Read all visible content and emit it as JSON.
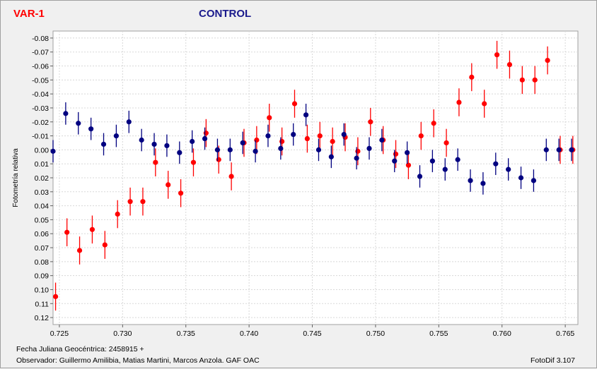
{
  "chart_data": {
    "type": "scatter",
    "xlabel": "Fecha Juliana Geocéntrica: 2458915 +",
    "ylabel": "Fotometría relativa",
    "xlim": [
      0.7245,
      0.766
    ],
    "ylim": [
      -0.085,
      0.125
    ],
    "y_inverted": true,
    "grid": true,
    "x_ticks": [
      "0.725",
      "0.730",
      "0.735",
      "0.740",
      "0.745",
      "0.750",
      "0.755",
      "0.760",
      "0.765"
    ],
    "x_tick_values": [
      0.725,
      0.73,
      0.735,
      0.74,
      0.745,
      0.75,
      0.755,
      0.76,
      0.765
    ],
    "y_ticks": [
      "-0.08",
      "-0.07",
      "-0.06",
      "-0.05",
      "-0.04",
      "-0.03",
      "-0.02",
      "-0.01",
      "0.00",
      "0.01",
      "0.02",
      "0.03",
      "0.04",
      "0.05",
      "0.06",
      "0.07",
      "0.08",
      "0.09",
      "0.10",
      "0.11",
      "0.12"
    ],
    "y_tick_values": [
      -0.08,
      -0.07,
      -0.06,
      -0.05,
      -0.04,
      -0.03,
      -0.02,
      -0.01,
      0,
      0.01,
      0.02,
      0.03,
      0.04,
      0.05,
      0.06,
      0.07,
      0.08,
      0.09,
      0.1,
      0.11,
      0.12
    ],
    "series": [
      {
        "name": "VAR-1",
        "color": "#ff0000",
        "error": 0.01,
        "x": [
          0.7247,
          0.7256,
          0.7266,
          0.7276,
          0.7286,
          0.7296,
          0.7306,
          0.7316,
          0.7326,
          0.7336,
          0.7346,
          0.7356,
          0.7366,
          0.7376,
          0.7386,
          0.7396,
          0.7406,
          0.7416,
          0.7426,
          0.7436,
          0.7446,
          0.7456,
          0.7466,
          0.7476,
          0.7486,
          0.7496,
          0.7506,
          0.7516,
          0.7526,
          0.7536,
          0.7546,
          0.7556,
          0.7566,
          0.7576,
          0.7586,
          0.7596,
          0.7606,
          0.7616,
          0.7626,
          0.7636,
          0.7646,
          0.7656
        ],
        "y": [
          0.105,
          0.059,
          0.072,
          0.057,
          0.068,
          0.046,
          0.037,
          0.037,
          0.009,
          0.025,
          0.031,
          0.009,
          -0.012,
          0.007,
          0.019,
          -0.005,
          -0.007,
          -0.023,
          -0.006,
          -0.033,
          -0.008,
          -0.01,
          -0.006,
          -0.009,
          0.001,
          -0.02,
          -0.007,
          0.003,
          0.011,
          -0.01,
          -0.019,
          -0.005,
          -0.034,
          -0.052,
          -0.033,
          -0.068,
          -0.061,
          -0.05,
          -0.05,
          -0.064,
          0,
          0
        ]
      },
      {
        "name": "CONTROL",
        "color": "#000080",
        "error": 0.008,
        "x": [
          0.7245,
          0.7255,
          0.7265,
          0.7275,
          0.7285,
          0.7295,
          0.7305,
          0.7315,
          0.7325,
          0.7335,
          0.7345,
          0.7355,
          0.7365,
          0.7375,
          0.7385,
          0.7395,
          0.7405,
          0.7415,
          0.7425,
          0.7435,
          0.7445,
          0.7455,
          0.7465,
          0.7475,
          0.7485,
          0.7495,
          0.7505,
          0.7515,
          0.7525,
          0.7535,
          0.7545,
          0.7555,
          0.7565,
          0.7575,
          0.7585,
          0.7595,
          0.7605,
          0.7615,
          0.7625,
          0.7635,
          0.7645,
          0.7655
        ],
        "y": [
          0.001,
          -0.026,
          -0.019,
          -0.015,
          -0.004,
          -0.01,
          -0.02,
          -0.007,
          -0.004,
          -0.003,
          0.002,
          -0.006,
          -0.008,
          0.0,
          0.0,
          -0.005,
          0.001,
          -0.01,
          -0.001,
          -0.011,
          -0.025,
          0.0,
          0.005,
          -0.011,
          0.006,
          -0.001,
          -0.007,
          0.008,
          0.002,
          0.019,
          0.008,
          0.014,
          0.007,
          0.022,
          0.024,
          0.01,
          0.014,
          0.02,
          0.022,
          0.0,
          0,
          0
        ]
      }
    ]
  },
  "header": {
    "var_label": "VAR-1",
    "control_label": "CONTROL"
  },
  "footer": {
    "date_label": "Fecha Juliana Geocéntrica: 2458915 +",
    "observer": "Observador: Guillermo Amilibia, Matias Martini,  Marcos Anzola. GAF OAC",
    "software": "FotoDif 3.107"
  }
}
